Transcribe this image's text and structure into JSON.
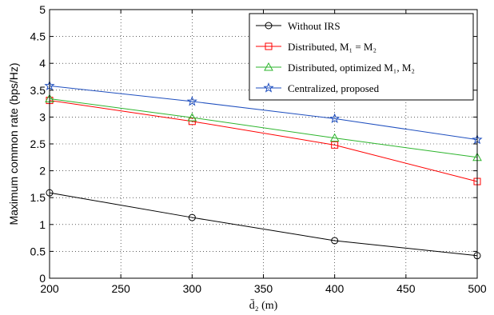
{
  "chart_data": {
    "type": "line",
    "xlabel": "d̄₂ (m)",
    "ylabel": "Maximum common rate (bps/Hz)",
    "xlim": [
      200,
      500
    ],
    "ylim": [
      0,
      5
    ],
    "xticks": [
      200,
      250,
      300,
      350,
      400,
      450,
      500
    ],
    "yticks": [
      0,
      0.5,
      1,
      1.5,
      2,
      2.5,
      3,
      3.5,
      4,
      4.5,
      5
    ],
    "ytick_labels": [
      "0",
      "0.5",
      "1",
      "1.5",
      "2",
      "2.5",
      "3",
      "3.5",
      "4",
      "4.5",
      "5"
    ],
    "grid": true,
    "legend_position": "top-right",
    "series": [
      {
        "name": "Without IRS",
        "color": "#000000",
        "marker": "circle",
        "x": [
          200,
          300,
          400,
          500
        ],
        "y": [
          1.59,
          1.13,
          0.7,
          0.42
        ]
      },
      {
        "name": "Distributed, M₁ = M₂",
        "color": "#ff0000",
        "marker": "square",
        "x": [
          200,
          300,
          400,
          500
        ],
        "y": [
          3.31,
          2.92,
          2.48,
          1.8
        ]
      },
      {
        "name": "Distributed, optimized M₁, M₂",
        "color": "#2db52d",
        "marker": "triangle",
        "x": [
          200,
          300,
          400,
          500
        ],
        "y": [
          3.34,
          2.99,
          2.61,
          2.25
        ]
      },
      {
        "name": "Centralized, proposed",
        "color": "#1f4fbf",
        "marker": "star",
        "x": [
          200,
          300,
          400,
          500
        ],
        "y": [
          3.58,
          3.29,
          2.97,
          2.58
        ]
      }
    ]
  }
}
